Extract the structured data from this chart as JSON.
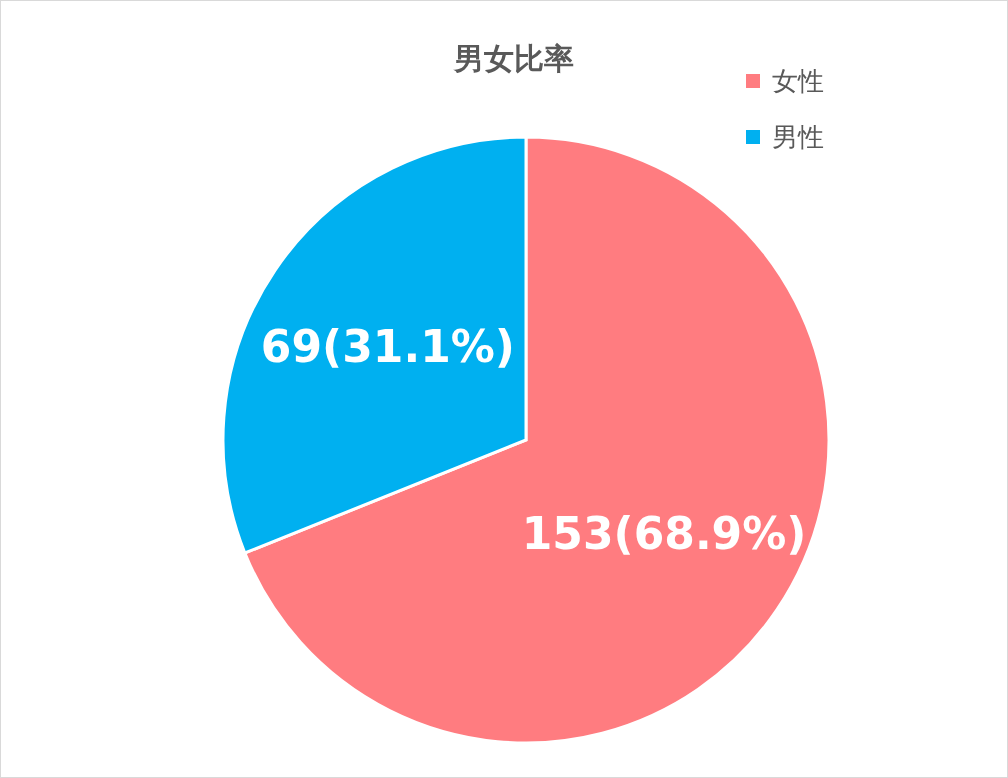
{
  "chart_data": {
    "type": "pie",
    "title": "男女比率",
    "categories": [
      "女性",
      "男性"
    ],
    "values": [
      153,
      69
    ],
    "colors": [
      "#ff7c80",
      "#00b0f0"
    ],
    "value_labels": [
      "153(68.9%)",
      "69(31.1%)"
    ],
    "legend": "top right"
  }
}
